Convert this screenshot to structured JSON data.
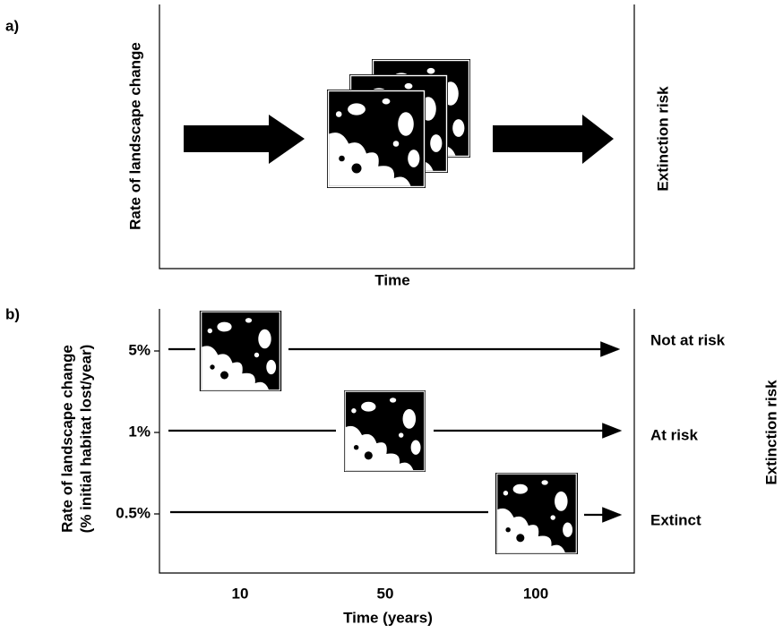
{
  "panel_a": {
    "label": "a)",
    "y_axis_label": "Rate of landscape change",
    "x_axis_label": "Time",
    "outcome_label": "Extinction risk"
  },
  "panel_b": {
    "label": "b)",
    "y_axis_label": [
      "Rate of landscape change",
      "(% initial habitat lost/year)"
    ],
    "rows": [
      {
        "rate": "5%",
        "outcome": "Not at risk"
      },
      {
        "rate": "1%",
        "outcome": "At risk"
      },
      {
        "rate": "0.5%",
        "outcome": "Extinct"
      }
    ],
    "x_ticks": [
      "10",
      "50",
      "100"
    ],
    "x_axis_label": "Time (years)",
    "outcome_axis_label": "Extinction risk"
  }
}
